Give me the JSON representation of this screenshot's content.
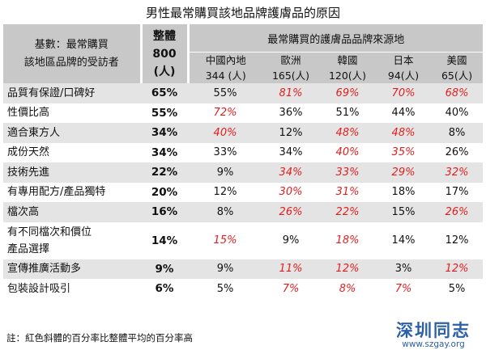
{
  "title": "男性最常購買該地品牌護膚品的原因",
  "header": {
    "basis_line1": "基數：最常購買",
    "basis_line2": "該地區品牌的受訪者",
    "total_line1": "整體",
    "total_line2": "800",
    "total_line3": "(人)",
    "group_label": "最常購買的護膚品品牌來源地",
    "sources": [
      {
        "name": "中國內地",
        "count": "344 (人)"
      },
      {
        "name": "歐洲",
        "count": "165(人)"
      },
      {
        "name": "韓國",
        "count": "120(人)"
      },
      {
        "name": "日本",
        "count": "94(人)"
      },
      {
        "name": "美國",
        "count": "65(人)"
      }
    ]
  },
  "rows": [
    {
      "reason": "品質有保證/口碑好",
      "total": "65%",
      "cells": [
        {
          "v": "55%",
          "hi": false
        },
        {
          "v": "81%",
          "hi": true
        },
        {
          "v": "69%",
          "hi": true
        },
        {
          "v": "70%",
          "hi": true
        },
        {
          "v": "68%",
          "hi": true
        }
      ]
    },
    {
      "reason": "性價比高",
      "total": "55%",
      "cells": [
        {
          "v": "72%",
          "hi": true
        },
        {
          "v": "36%",
          "hi": false
        },
        {
          "v": "51%",
          "hi": false
        },
        {
          "v": "44%",
          "hi": false
        },
        {
          "v": "40%",
          "hi": false
        }
      ]
    },
    {
      "reason": "適合東方人",
      "total": "34%",
      "cells": [
        {
          "v": "40%",
          "hi": true
        },
        {
          "v": "12%",
          "hi": false
        },
        {
          "v": "48%",
          "hi": true
        },
        {
          "v": "48%",
          "hi": true
        },
        {
          "v": "8%",
          "hi": false
        }
      ]
    },
    {
      "reason": "成份天然",
      "total": "34%",
      "cells": [
        {
          "v": "33%",
          "hi": false
        },
        {
          "v": "34%",
          "hi": false
        },
        {
          "v": "40%",
          "hi": true
        },
        {
          "v": "35%",
          "hi": true
        },
        {
          "v": "26%",
          "hi": false
        }
      ]
    },
    {
      "reason": "技術先進",
      "total": "22%",
      "cells": [
        {
          "v": "9%",
          "hi": false
        },
        {
          "v": "34%",
          "hi": true
        },
        {
          "v": "33%",
          "hi": true
        },
        {
          "v": "29%",
          "hi": true
        },
        {
          "v": "32%",
          "hi": true
        }
      ]
    },
    {
      "reason": "有專用配方/產品獨特",
      "total": "20%",
      "cells": [
        {
          "v": "12%",
          "hi": false
        },
        {
          "v": "30%",
          "hi": true
        },
        {
          "v": "31%",
          "hi": true
        },
        {
          "v": "18%",
          "hi": false
        },
        {
          "v": "17%",
          "hi": false
        }
      ]
    },
    {
      "reason": "檔次高",
      "total": "16%",
      "cells": [
        {
          "v": "8%",
          "hi": false
        },
        {
          "v": "26%",
          "hi": true
        },
        {
          "v": "22%",
          "hi": true
        },
        {
          "v": "15%",
          "hi": false
        },
        {
          "v": "26%",
          "hi": true
        }
      ]
    },
    {
      "reason": "有不同檔次和價位\n產品選擇",
      "total": "14%",
      "cells": [
        {
          "v": "15%",
          "hi": true
        },
        {
          "v": "9%",
          "hi": false
        },
        {
          "v": "18%",
          "hi": true
        },
        {
          "v": "14%",
          "hi": false
        },
        {
          "v": "12%",
          "hi": false
        }
      ]
    },
    {
      "reason": "宣傳推廣活動多",
      "total": "9%",
      "cells": [
        {
          "v": "9%",
          "hi": false
        },
        {
          "v": "11%",
          "hi": true
        },
        {
          "v": "12%",
          "hi": true
        },
        {
          "v": "3%",
          "hi": false
        },
        {
          "v": "12%",
          "hi": true
        }
      ]
    },
    {
      "reason": "包裝設計吸引",
      "total": "6%",
      "cells": [
        {
          "v": "5%",
          "hi": false
        },
        {
          "v": "7%",
          "hi": true
        },
        {
          "v": "8%",
          "hi": true
        },
        {
          "v": "7%",
          "hi": true
        },
        {
          "v": "5%",
          "hi": false
        }
      ]
    }
  ],
  "note": "註：紅色斜體的百分率比整體平均的百分率高",
  "watermark": {
    "text": "深圳同志",
    "url": "www.szgay.org"
  },
  "colors": {
    "header_bg": "#c8c8c8",
    "stripe_bg": "#e4e4e4",
    "highlight": "#e02020",
    "watermark": "#2b5fa8"
  }
}
